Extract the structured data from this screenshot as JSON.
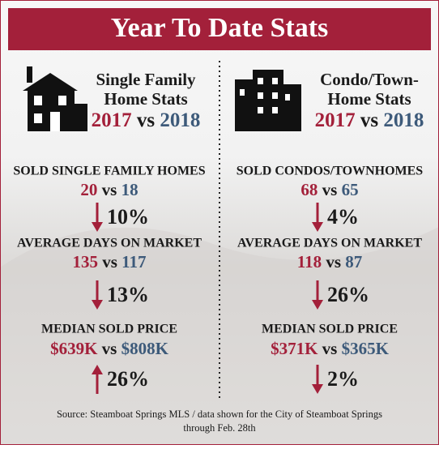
{
  "header": {
    "title": "Year To Date Stats"
  },
  "columns": [
    {
      "heading": [
        "Single Family",
        "Home Stats"
      ],
      "year_a": "2017",
      "vs": "vs",
      "year_b": "2018",
      "stats": [
        {
          "label": "SOLD SINGLE FAMILY HOMES",
          "a": "20",
          "vs": "vs",
          "b": "18",
          "change": "10%",
          "direction": "down"
        },
        {
          "label": "AVERAGE DAYS ON MARKET",
          "a": "135",
          "vs": "vs",
          "b": "117",
          "change": "13%",
          "direction": "down"
        },
        {
          "label": "MEDIAN SOLD PRICE",
          "a": "$639K",
          "vs": "vs",
          "b": "$808K",
          "change": "26%",
          "direction": "up"
        }
      ]
    },
    {
      "heading": [
        "Condo/Town-",
        "Home Stats"
      ],
      "year_a": "2017",
      "vs": "vs",
      "year_b": "2018",
      "stats": [
        {
          "label": "SOLD CONDOS/TOWNHOMES",
          "a": "68",
          "vs": "vs",
          "b": "65",
          "change": "4%",
          "direction": "down"
        },
        {
          "label": "AVERAGE DAYS ON MARKET",
          "a": "118",
          "vs": "vs",
          "b": "87",
          "change": "26%",
          "direction": "down"
        },
        {
          "label": "MEDIAN SOLD PRICE",
          "a": "$371K",
          "vs": "vs",
          "b": "$365K",
          "change": "2%",
          "direction": "down"
        }
      ]
    }
  ],
  "footer": {
    "source": [
      "Source: Steamboat Springs MLS / data shown for the City of Steamboat Springs",
      "through Feb. 28th"
    ]
  }
}
